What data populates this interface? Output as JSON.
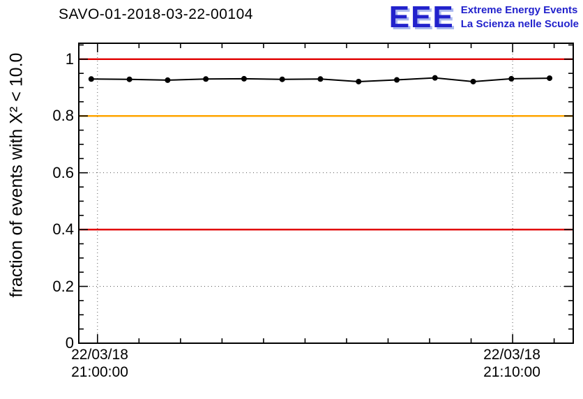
{
  "header": {
    "logo": {
      "acronym": "EEE",
      "line1": "Extreme Energy Events",
      "line2": "La Scienza nelle Scuole",
      "text_color": "#2222cc",
      "shadow_color": "#aab8ee"
    }
  },
  "chart_data": {
    "type": "line",
    "title": "SAVO-01-2018-03-22-00104",
    "xlabel": "",
    "ylabel": "fraction of events with X² < 10.0",
    "ylim": [
      0,
      1.056
    ],
    "xlim_minutes": [
      -0.45,
      11.46
    ],
    "grid": true,
    "grid_color": "#555555",
    "frame_color": "#000000",
    "yticks": [
      0,
      0.2,
      0.4,
      0.6,
      0.8,
      1
    ],
    "y_tick_labels": [
      "0",
      "0.2",
      "0.4",
      "0.6",
      "0.8",
      "1"
    ],
    "x_ticks": [
      {
        "minute": 0,
        "date": "22/03/18",
        "time": "21:00:00"
      },
      {
        "minute": 10,
        "date": "22/03/18",
        "time": "21:10:00"
      }
    ],
    "reference_lines": [
      {
        "value": 1.0,
        "color": "#e10000"
      },
      {
        "value": 0.8,
        "color": "#ffa500"
      },
      {
        "value": 0.4,
        "color": "#e10000"
      }
    ],
    "series": [
      {
        "name": "fraction of events with chi2 < 10.0",
        "color": "#000000",
        "marker": "circle",
        "points": [
          {
            "t": -0.15,
            "v": 0.93
          },
          {
            "t": 0.77,
            "v": 0.929
          },
          {
            "t": 1.69,
            "v": 0.926
          },
          {
            "t": 2.61,
            "v": 0.93
          },
          {
            "t": 3.53,
            "v": 0.931
          },
          {
            "t": 4.45,
            "v": 0.929
          },
          {
            "t": 5.37,
            "v": 0.93
          },
          {
            "t": 6.29,
            "v": 0.921
          },
          {
            "t": 7.21,
            "v": 0.927
          },
          {
            "t": 8.13,
            "v": 0.934
          },
          {
            "t": 9.05,
            "v": 0.921
          },
          {
            "t": 9.97,
            "v": 0.931
          },
          {
            "t": 10.89,
            "v": 0.933
          }
        ]
      }
    ]
  }
}
